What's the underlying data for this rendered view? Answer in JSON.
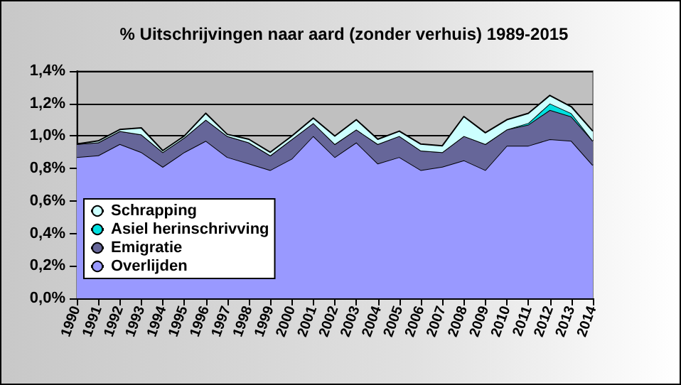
{
  "chart_data": {
    "type": "area",
    "title": "% Uitschrijvingen naar aard (zonder verhuis) 1989-2015",
    "stacked": true,
    "grid": "y",
    "legend": "bottom left",
    "categories": [
      "1990",
      "1991",
      "1992",
      "1993",
      "1994",
      "1995",
      "1996",
      "1997",
      "1998",
      "1999",
      "2000",
      "2001",
      "2002",
      "2003",
      "2004",
      "2005",
      "2006",
      "2007",
      "2008",
      "2009",
      "2010",
      "2011",
      "2012",
      "2013",
      "2014"
    ],
    "ylim": [
      0,
      1.4
    ],
    "yticks": [
      {
        "value": 0,
        "label": "0,0%"
      },
      {
        "value": 0.2,
        "label": "0,2%"
      },
      {
        "value": 0.4,
        "label": "0,4%"
      },
      {
        "value": 0.6,
        "label": "0,6%"
      },
      {
        "value": 0.8,
        "label": "0,8%"
      },
      {
        "value": 1.0,
        "label": "1,0%"
      },
      {
        "value": 1.2,
        "label": "1,2%"
      },
      {
        "value": 1.4,
        "label": "1,4%"
      }
    ],
    "series": [
      {
        "name": "Overlijden",
        "color": "#9999ff",
        "values": [
          0.87,
          0.88,
          0.95,
          0.9,
          0.81,
          0.9,
          0.97,
          0.87,
          0.83,
          0.79,
          0.86,
          1.0,
          0.87,
          0.96,
          0.83,
          0.87,
          0.79,
          0.81,
          0.85,
          0.79,
          0.94,
          0.94,
          0.98,
          0.97,
          0.82
        ]
      },
      {
        "name": "Emigratie",
        "color": "#666699",
        "values": [
          0.08,
          0.08,
          0.08,
          0.11,
          0.09,
          0.09,
          0.13,
          0.13,
          0.13,
          0.09,
          0.12,
          0.08,
          0.08,
          0.08,
          0.12,
          0.13,
          0.12,
          0.09,
          0.15,
          0.16,
          0.1,
          0.13,
          0.18,
          0.15,
          0.15
        ]
      },
      {
        "name": "Asiel herinschrivving",
        "color": "#00e0e0",
        "values": [
          0,
          0,
          0,
          0,
          0,
          0,
          0,
          0,
          0,
          0,
          0,
          0,
          0,
          0,
          0,
          0,
          0,
          0,
          0,
          0,
          0,
          0.01,
          0.04,
          0.02,
          0
        ]
      },
      {
        "name": "Schrapping",
        "color": "#ccffff",
        "values": [
          0,
          0.01,
          0.01,
          0.04,
          0.01,
          0.01,
          0.04,
          0.01,
          0.02,
          0.02,
          0.02,
          0.03,
          0.05,
          0.06,
          0.03,
          0.03,
          0.04,
          0.04,
          0.12,
          0.07,
          0.06,
          0.06,
          0.05,
          0.04,
          0.06
        ]
      }
    ]
  }
}
